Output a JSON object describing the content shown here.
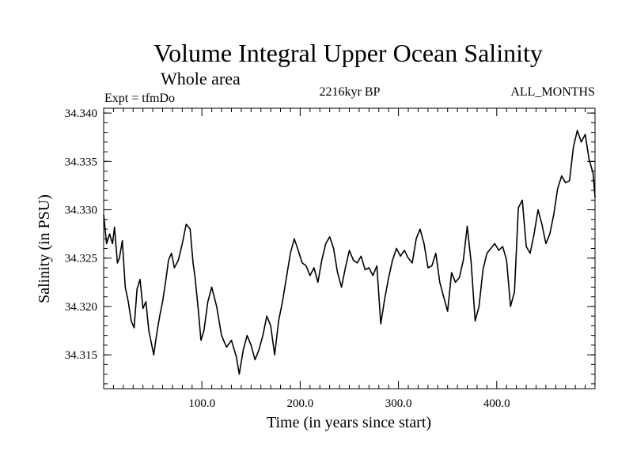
{
  "chart_data": {
    "type": "line",
    "title": "Volume Integral Upper Ocean Salinity",
    "subtitle": "Whole area",
    "annotations": {
      "experiment": "Expt = tfmDo",
      "period": "2216kyr BP",
      "months": "ALL_MONTHS"
    },
    "xlabel": "Time (in years since start)",
    "ylabel": "Salinity (in PSU)",
    "xlim": [
      0,
      500
    ],
    "ylim": [
      34.3115,
      34.3405
    ],
    "x_ticks": [
      100,
      200,
      300,
      400
    ],
    "x_tick_labels": [
      "100.0",
      "200.0",
      "300.0",
      "400.0"
    ],
    "y_ticks": [
      34.315,
      34.32,
      34.325,
      34.33,
      34.335,
      34.34
    ],
    "y_tick_labels": [
      "34.315",
      "34.320",
      "34.325",
      "34.330",
      "34.335",
      "34.340"
    ],
    "grid": false,
    "series": [
      {
        "name": "Salinity",
        "color": "#000000",
        "x": [
          0,
          3,
          6,
          9,
          11,
          14,
          16,
          19,
          22,
          25,
          28,
          31,
          34,
          37,
          40,
          43,
          46,
          48,
          51,
          54,
          57,
          60,
          63,
          66,
          69,
          72,
          76,
          80,
          84,
          88,
          91,
          93,
          96,
          99,
          102,
          106,
          110,
          115,
          120,
          125,
          130,
          135,
          138,
          142,
          146,
          150,
          154,
          158,
          162,
          166,
          170,
          174,
          178,
          182,
          186,
          190,
          194,
          198,
          202,
          206,
          210,
          214,
          218,
          222,
          226,
          230,
          234,
          238,
          242,
          246,
          250,
          254,
          258,
          262,
          266,
          270,
          274,
          278,
          282,
          286,
          290,
          294,
          298,
          302,
          306,
          310,
          314,
          318,
          322,
          326,
          330,
          334,
          338,
          342,
          346,
          350,
          354,
          358,
          362,
          366,
          370,
          374,
          378,
          382,
          386,
          390,
          394,
          398,
          402,
          406,
          410,
          414,
          418,
          422,
          426,
          430,
          434,
          438,
          442,
          446,
          450,
          454,
          458,
          462,
          466,
          470,
          474,
          478,
          482,
          486,
          490,
          494,
          498,
          500
        ],
        "values": [
          34.3295,
          34.3265,
          34.3275,
          34.3265,
          34.3282,
          34.3245,
          34.325,
          34.3268,
          34.322,
          34.3205,
          34.3185,
          34.3178,
          34.3218,
          34.3228,
          34.3198,
          34.3205,
          34.3175,
          34.3165,
          34.315,
          34.3172,
          34.319,
          34.3205,
          34.3225,
          34.3248,
          34.3255,
          34.324,
          34.3248,
          34.3265,
          34.3285,
          34.328,
          34.3245,
          34.323,
          34.32,
          34.3165,
          34.3175,
          34.3205,
          34.322,
          34.32,
          34.317,
          34.3158,
          34.3165,
          34.3148,
          34.313,
          34.3155,
          34.317,
          34.316,
          34.3145,
          34.3155,
          34.317,
          34.319,
          34.318,
          34.315,
          34.3185,
          34.3205,
          34.323,
          34.3255,
          34.327,
          34.3258,
          34.3245,
          34.3242,
          34.3232,
          34.324,
          34.3225,
          34.3248,
          34.3265,
          34.3272,
          34.326,
          34.3235,
          34.322,
          34.324,
          34.3258,
          34.3248,
          34.3245,
          34.3252,
          34.3238,
          34.324,
          34.3232,
          34.3242,
          34.3182,
          34.3208,
          34.323,
          34.3248,
          34.326,
          34.3252,
          34.3258,
          34.325,
          34.3245,
          34.327,
          34.328,
          34.3265,
          34.324,
          34.3242,
          34.3255,
          34.3225,
          34.321,
          34.3195,
          34.3235,
          34.3225,
          34.323,
          34.3248,
          34.3283,
          34.3245,
          34.3185,
          34.32,
          34.3238,
          34.3255,
          34.326,
          34.3265,
          34.3258,
          34.3262,
          34.3248,
          34.32,
          34.3215,
          34.3302,
          34.331,
          34.3262,
          34.3255,
          34.3275,
          34.33,
          34.3285,
          34.3265,
          34.3275,
          34.3295,
          34.3322,
          34.3335,
          34.3328,
          34.333,
          34.3365,
          34.3382,
          34.337,
          34.3378,
          34.3352,
          34.3338,
          34.3313
        ]
      }
    ]
  }
}
